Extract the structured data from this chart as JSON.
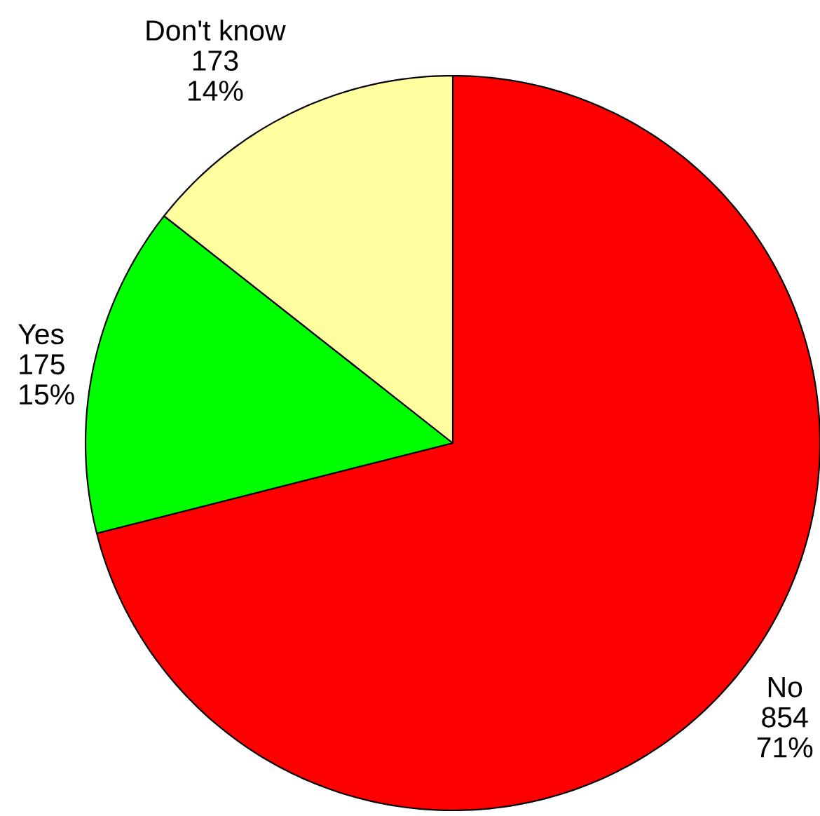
{
  "chart_data": {
    "type": "pie",
    "categories": [
      "No",
      "Yes",
      "Don't know"
    ],
    "values": [
      854,
      175,
      173
    ],
    "colors": [
      "#ff0000",
      "#00ff00",
      "#ffffa0"
    ],
    "value_labels": [
      "854 71%",
      "175 15%",
      "173 14%"
    ]
  }
}
